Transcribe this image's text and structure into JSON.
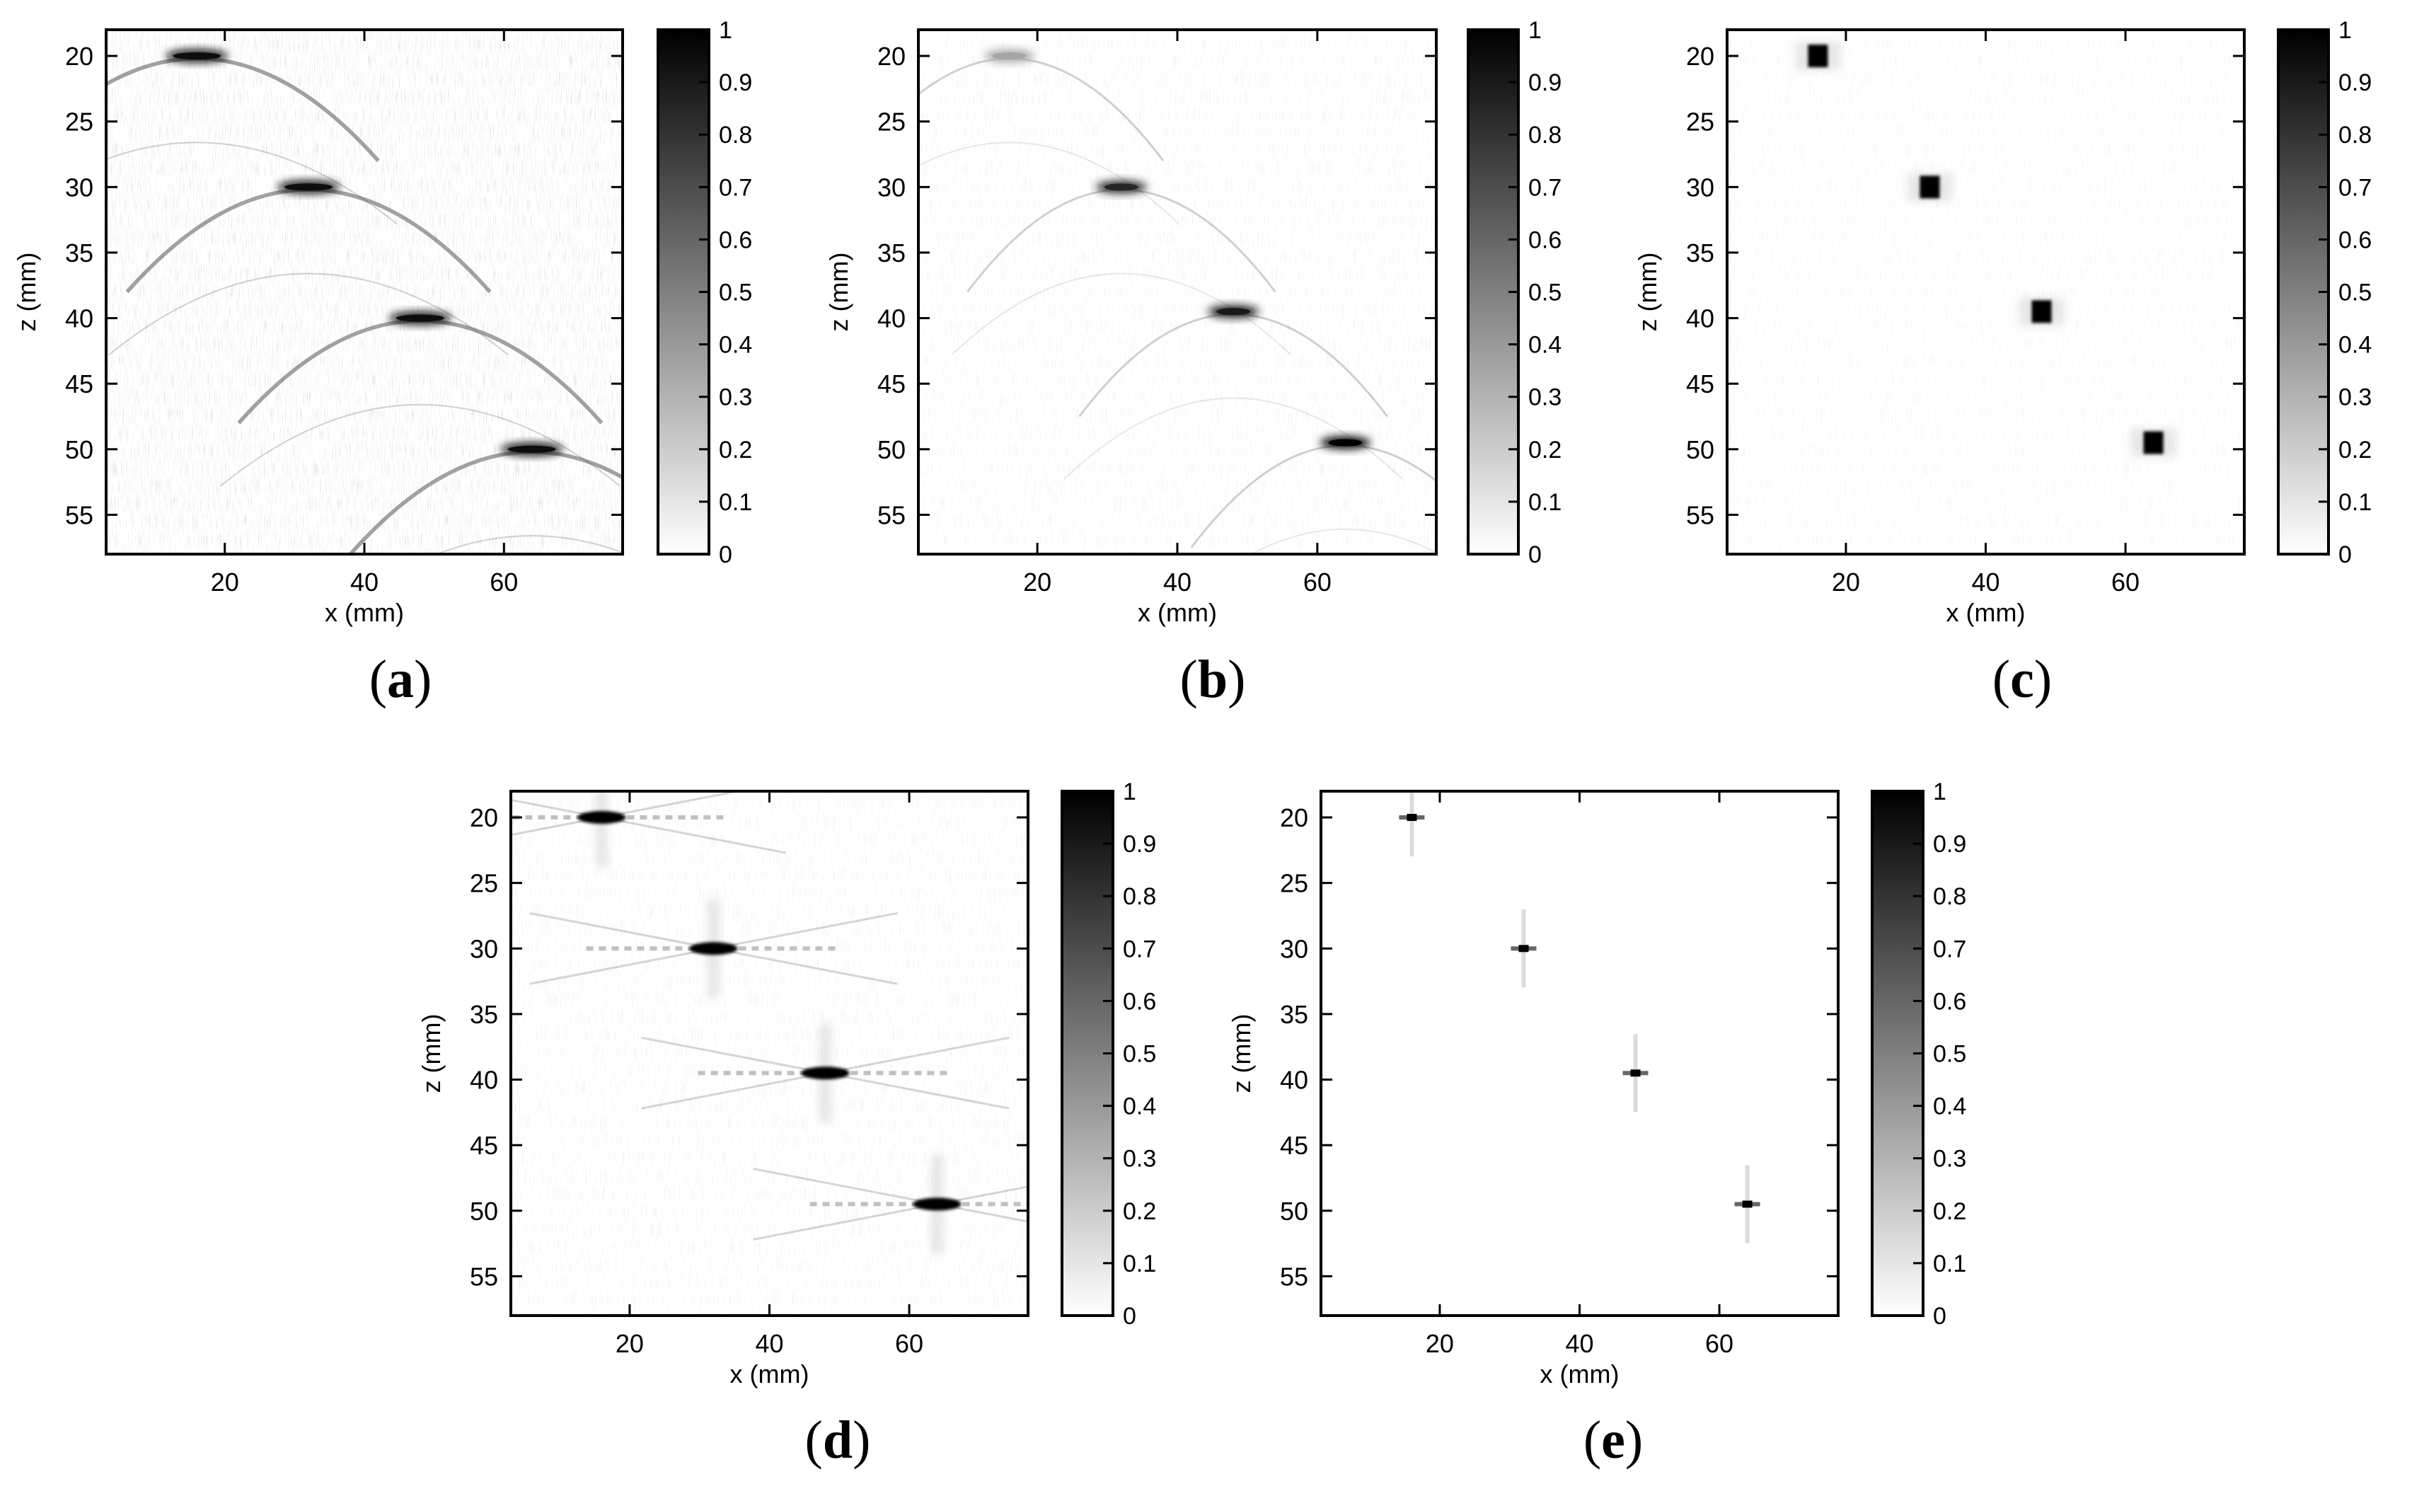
{
  "chart_data": [
    {
      "type": "heatmap",
      "label": "a",
      "xlabel": "x (mm)",
      "ylabel": "z (mm)",
      "xlim": [
        3,
        77
      ],
      "ylim": [
        58,
        18
      ],
      "xticks": [
        20,
        40,
        60
      ],
      "yticks": [
        20,
        25,
        30,
        35,
        40,
        45,
        50,
        55
      ],
      "colorbar": {
        "min": 0,
        "max": 1,
        "ticks": [
          0,
          0.1,
          0.2,
          0.3,
          0.4,
          0.5,
          0.6,
          0.7,
          0.8,
          0.9,
          1
        ],
        "colormap": "gray-inverted"
      },
      "point_scatterers": [
        {
          "x": 16,
          "z": 20,
          "intensity": 0.95
        },
        {
          "x": 32,
          "z": 30,
          "intensity": 0.95
        },
        {
          "x": 48,
          "z": 40,
          "intensity": 0.95
        },
        {
          "x": 64,
          "z": 50,
          "intensity": 0.95
        }
      ],
      "artifact": "hyperbolic diffraction arcs"
    },
    {
      "type": "heatmap",
      "label": "b",
      "xlabel": "x (mm)",
      "ylabel": "z (mm)",
      "xlim": [
        3,
        77
      ],
      "ylim": [
        58,
        18
      ],
      "xticks": [
        20,
        40,
        60
      ],
      "yticks": [
        20,
        25,
        30,
        35,
        40,
        45,
        50,
        55
      ],
      "colorbar": {
        "min": 0,
        "max": 1,
        "ticks": [
          0,
          0.1,
          0.2,
          0.3,
          0.4,
          0.5,
          0.6,
          0.7,
          0.8,
          0.9,
          1
        ],
        "colormap": "gray-inverted"
      },
      "point_scatterers": [
        {
          "x": 16,
          "z": 20,
          "intensity": 0.35
        },
        {
          "x": 32,
          "z": 30,
          "intensity": 0.85
        },
        {
          "x": 48,
          "z": 39.5,
          "intensity": 0.9
        },
        {
          "x": 64,
          "z": 49.5,
          "intensity": 1.0
        }
      ],
      "artifact": "faint arcs"
    },
    {
      "type": "heatmap",
      "label": "c",
      "xlabel": "x (mm)",
      "ylabel": "z (mm)",
      "xlim": [
        3,
        77
      ],
      "ylim": [
        58,
        18
      ],
      "xticks": [
        20,
        40,
        60
      ],
      "yticks": [
        20,
        25,
        30,
        35,
        40,
        45,
        50,
        55
      ],
      "colorbar": {
        "min": 0,
        "max": 1,
        "ticks": [
          0,
          0.1,
          0.2,
          0.3,
          0.4,
          0.5,
          0.6,
          0.7,
          0.8,
          0.9,
          1
        ],
        "colormap": "gray-inverted"
      },
      "point_scatterers": [
        {
          "x": 16,
          "z": 20,
          "intensity": 1.0
        },
        {
          "x": 32,
          "z": 30,
          "intensity": 1.0
        },
        {
          "x": 48,
          "z": 39.5,
          "intensity": 1.0
        },
        {
          "x": 64,
          "z": 49.5,
          "intensity": 1.0
        }
      ],
      "artifact": "blocky pixelated background"
    },
    {
      "type": "heatmap",
      "label": "d",
      "xlabel": "x (mm)",
      "ylabel": "z (mm)",
      "xlim": [
        3,
        77
      ],
      "ylim": [
        58,
        18
      ],
      "xticks": [
        20,
        40,
        60
      ],
      "yticks": [
        20,
        25,
        30,
        35,
        40,
        45,
        50,
        55
      ],
      "colorbar": {
        "min": 0,
        "max": 1,
        "ticks": [
          0,
          0.1,
          0.2,
          0.3,
          0.4,
          0.5,
          0.6,
          0.7,
          0.8,
          0.9,
          1
        ],
        "colormap": "gray-inverted"
      },
      "point_scatterers": [
        {
          "x": 16,
          "z": 20,
          "intensity": 1.0
        },
        {
          "x": 32,
          "z": 30,
          "intensity": 1.0
        },
        {
          "x": 48,
          "z": 39.5,
          "intensity": 1.0
        },
        {
          "x": 64,
          "z": 49.5,
          "intensity": 1.0
        }
      ],
      "artifact": "cross-shaped sidelobes"
    },
    {
      "type": "heatmap",
      "label": "e",
      "xlabel": "x (mm)",
      "ylabel": "z (mm)",
      "xlim": [
        3,
        77
      ],
      "ylim": [
        58,
        18
      ],
      "xticks": [
        20,
        40,
        60
      ],
      "yticks": [
        20,
        25,
        30,
        35,
        40,
        45,
        50,
        55
      ],
      "colorbar": {
        "min": 0,
        "max": 1,
        "ticks": [
          0,
          0.1,
          0.2,
          0.3,
          0.4,
          0.5,
          0.6,
          0.7,
          0.8,
          0.9,
          1
        ],
        "colormap": "gray-inverted"
      },
      "point_scatterers": [
        {
          "x": 16,
          "z": 20,
          "intensity": 1.0
        },
        {
          "x": 32,
          "z": 30,
          "intensity": 1.0
        },
        {
          "x": 48,
          "z": 39.5,
          "intensity": 1.0
        },
        {
          "x": 64,
          "z": 49.5,
          "intensity": 1.0
        }
      ],
      "artifact": "sharp points with faint vertical streaks"
    }
  ]
}
